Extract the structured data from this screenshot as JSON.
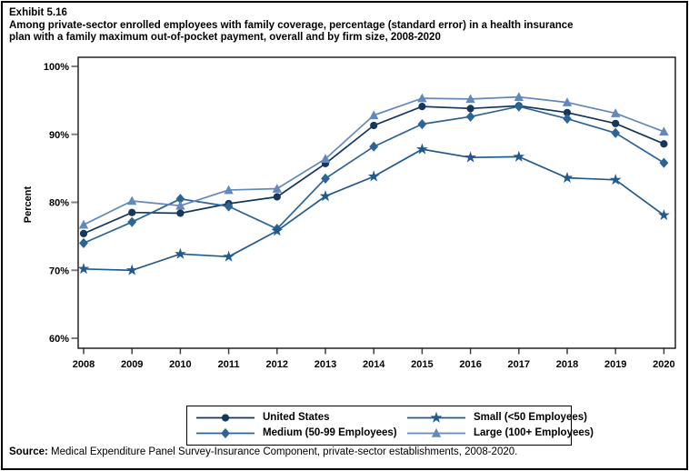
{
  "exhibit": {
    "number": "Exhibit 5.16",
    "title_lines": [
      "Among private-sector enrolled employees with family coverage, percentage (standard error) in a health insurance",
      "plan with a family maximum out-of-pocket payment, overall and by firm size, 2008-2020"
    ]
  },
  "chart_data": {
    "type": "line",
    "x": [
      2008,
      2009,
      2010,
      2011,
      2012,
      2013,
      2014,
      2015,
      2016,
      2017,
      2018,
      2019,
      2020
    ],
    "x_tick_labels": [
      "2008",
      "2009",
      "2010",
      "2011",
      "2012",
      "2013",
      "2014",
      "2015",
      "2016",
      "2017",
      "2018",
      "2019",
      "2020"
    ],
    "ylabel": "Percent",
    "ylim": [
      60,
      100
    ],
    "y_ticks": [
      60,
      70,
      80,
      90,
      100
    ],
    "y_tick_labels": [
      "60%",
      "70%",
      "80%",
      "90%",
      "100%"
    ],
    "grid": false,
    "legend_position": "bottom",
    "series": [
      {
        "name": "United States",
        "marker": "circle",
        "color": "#16365C",
        "values": [
          75.4,
          78.5,
          78.4,
          79.8,
          80.8,
          85.7,
          91.3,
          94.1,
          93.8,
          94.2,
          93.2,
          91.6,
          88.6
        ]
      },
      {
        "name": "Medium (50-99 Employees)",
        "marker": "diamond",
        "color": "#2E6494",
        "values": [
          74.0,
          77.1,
          80.5,
          79.4,
          76.1,
          83.5,
          88.2,
          91.5,
          92.6,
          94.1,
          92.3,
          90.2,
          85.8
        ]
      },
      {
        "name": "Small (<50 Employees)",
        "marker": "star",
        "color": "#235A8C",
        "values": [
          70.2,
          70.0,
          72.4,
          72.0,
          75.8,
          80.9,
          83.8,
          87.8,
          86.6,
          86.7,
          83.6,
          83.3,
          78.1
        ]
      },
      {
        "name": "Large (100+ Employees)",
        "marker": "triangle",
        "color": "#6389BA",
        "values": [
          76.7,
          80.2,
          79.5,
          81.8,
          82.0,
          86.4,
          92.8,
          95.3,
          95.2,
          95.5,
          94.7,
          93.1,
          90.4
        ]
      }
    ],
    "legend_order": [
      0,
      2,
      1,
      3
    ]
  },
  "source": {
    "prefix": "Source:",
    "text": " Medical Expenditure Panel Survey-Insurance Component, private-sector establishments, 2008-2020."
  }
}
